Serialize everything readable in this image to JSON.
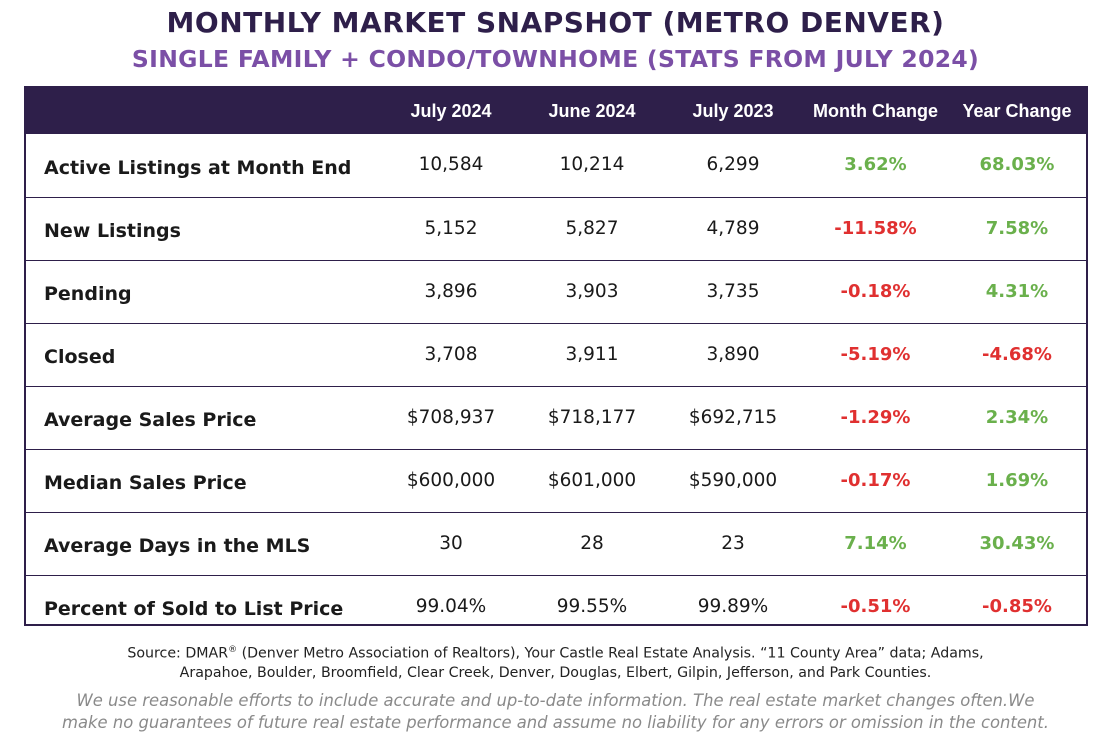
{
  "title": "MONTHLY MARKET SNAPSHOT (METRO DENVER)",
  "subtitle": "SINGLE FAMILY + CONDO/TOWNHOME (STATS FROM JULY 2024)",
  "table": {
    "headers": [
      "",
      "July 2024",
      "June 2024",
      "July 2023",
      "Month Change",
      "Year Change"
    ],
    "rows": [
      {
        "label": "Active Listings at Month End",
        "jul24": "10,584",
        "jun24": "10,214",
        "jul23": "6,299",
        "month": "3.62%",
        "year": "68.03%",
        "month_dir": "pos",
        "year_dir": "pos"
      },
      {
        "label": "New Listings",
        "jul24": "5,152",
        "jun24": "5,827",
        "jul23": "4,789",
        "month": "-11.58%",
        "year": "7.58%",
        "month_dir": "neg",
        "year_dir": "pos"
      },
      {
        "label": "Pending",
        "jul24": "3,896",
        "jun24": "3,903",
        "jul23": "3,735",
        "month": "-0.18%",
        "year": "4.31%",
        "month_dir": "neg",
        "year_dir": "pos"
      },
      {
        "label": "Closed",
        "jul24": "3,708",
        "jun24": "3,911",
        "jul23": "3,890",
        "month": "-5.19%",
        "year": "-4.68%",
        "month_dir": "neg",
        "year_dir": "neg"
      },
      {
        "label": "Average Sales Price",
        "jul24": "$708,937",
        "jun24": "$718,177",
        "jul23": "$692,715",
        "month": "-1.29%",
        "year": "2.34%",
        "month_dir": "neg",
        "year_dir": "pos"
      },
      {
        "label": "Median Sales Price",
        "jul24": "$600,000",
        "jun24": "$601,000",
        "jul23": "$590,000",
        "month": "-0.17%",
        "year": "1.69%",
        "month_dir": "neg",
        "year_dir": "pos"
      },
      {
        "label": "Average Days in the MLS",
        "jul24": "30",
        "jun24": "28",
        "jul23": "23",
        "month": "7.14%",
        "year": "30.43%",
        "month_dir": "pos",
        "year_dir": "pos"
      },
      {
        "label": "Percent of Sold to List Price",
        "jul24": "99.04%",
        "jun24": "99.55%",
        "jul23": "99.89%",
        "month": "-0.51%",
        "year": "-0.85%",
        "month_dir": "neg",
        "year_dir": "neg"
      }
    ]
  },
  "source": {
    "prefix": "Source: DMAR",
    "reg": "®",
    "line1_rest": " (Denver Metro Association of Realtors), Your Castle Real Estate Analysis. “11 County Area” data; Adams,",
    "line2": "Arapahoe, Boulder, Broomfield, Clear Creek, Denver, Douglas, Elbert, Gilpin, Jefferson, and Park Counties."
  },
  "disclaimer": {
    "line1": "We use reasonable efforts to include accurate and up-to-date information. The real estate market changes often.We",
    "line2": "make no guarantees of future real estate performance and assume no liability for any errors or omission in the content."
  },
  "colors": {
    "header_bg": "#2e1f4a",
    "subtitle": "#7b4fa6",
    "positive": "#6ab04c",
    "negative": "#e03030"
  }
}
